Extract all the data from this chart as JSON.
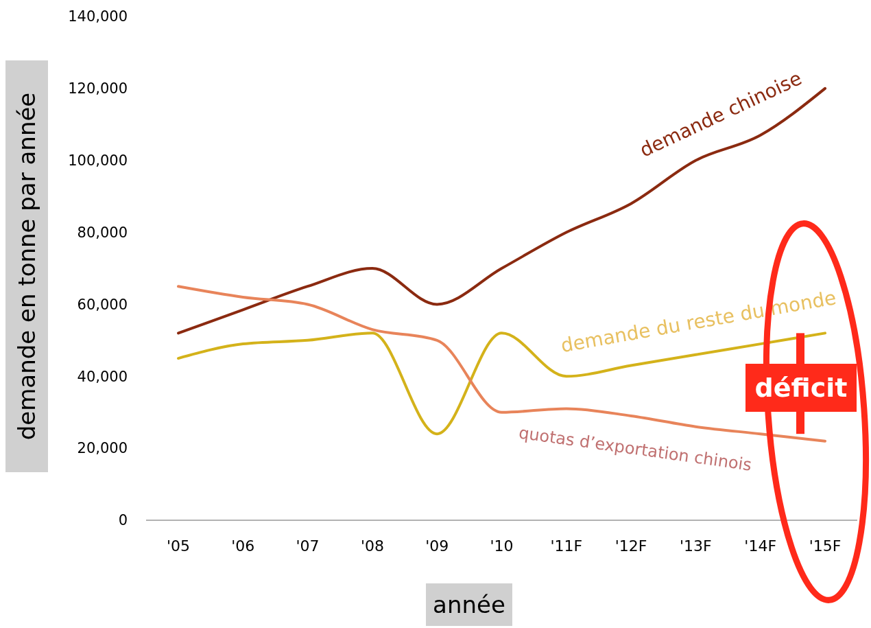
{
  "chart_data": {
    "type": "line",
    "ylabel": "demande en tonne par année",
    "xlabel": "année",
    "categories": [
      "'05",
      "'06",
      "'07",
      "'08",
      "'09",
      "'10",
      "'11F",
      "'12F",
      "'13F",
      "'14F",
      "'15F"
    ],
    "series": [
      {
        "name": "demande chinoise",
        "color": "#8b2a10",
        "values": [
          52000,
          58500,
          65000,
          70000,
          60000,
          70000,
          80000,
          88000,
          100000,
          107000,
          120000
        ]
      },
      {
        "name": "demande du reste du monde",
        "color": "#d4b21a",
        "values": [
          45000,
          49000,
          50000,
          52000,
          24000,
          52000,
          40000,
          43000,
          46000,
          49000,
          52000
        ]
      },
      {
        "name": "quotas d’exportation chinois",
        "color": "#e8845a",
        "values": [
          65000,
          62000,
          60000,
          53000,
          50000,
          30000,
          31000,
          29000,
          26000,
          24000,
          22000
        ]
      }
    ],
    "ylim": [
      0,
      140000
    ],
    "yticks": [
      {
        "value": 0,
        "label": "0"
      },
      {
        "value": 20000,
        "label": "20,000"
      },
      {
        "value": 40000,
        "label": "40,000"
      },
      {
        "value": 60000,
        "label": "60,000"
      },
      {
        "value": 80000,
        "label": "80,000"
      },
      {
        "value": 100000,
        "label": "100,000"
      },
      {
        "value": 120000,
        "label": "120,000"
      },
      {
        "value": 140000,
        "label": "140,000"
      }
    ],
    "grid": false,
    "marker": "none",
    "line_style": "solid",
    "annotations": [
      "déficit"
    ]
  }
}
